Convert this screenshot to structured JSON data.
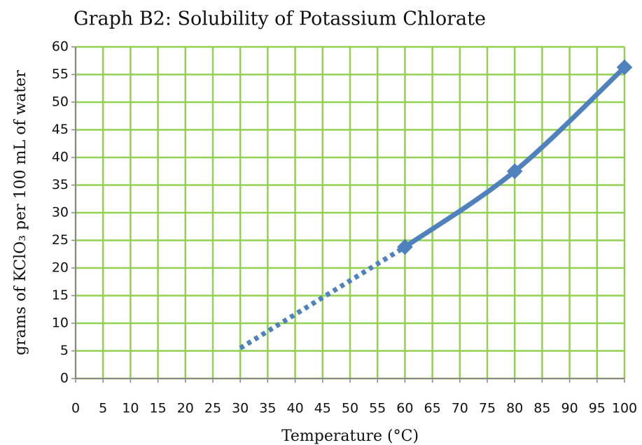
{
  "chart_data": {
    "type": "line",
    "title": "Graph B2: Solubility of Potassium Chlorate",
    "x_label": "Temperature (°C)",
    "y_label": "grams of KClO₃ per 100 mL of water",
    "xlim": [
      0,
      100
    ],
    "xticks": [
      0,
      5,
      10,
      15,
      20,
      25,
      30,
      35,
      40,
      45,
      50,
      55,
      60,
      65,
      70,
      75,
      80,
      85,
      90,
      95,
      100
    ],
    "ylim": [
      0,
      60
    ],
    "yticks": [
      0,
      5,
      10,
      15,
      20,
      25,
      30,
      35,
      40,
      45,
      50,
      55,
      60
    ],
    "grid": true,
    "grid_color": "#92d050",
    "series": [
      {
        "color": "#4f81bd",
        "x": [
          60,
          80,
          100
        ],
        "values": [
          23.8,
          37.5,
          56.3
        ],
        "markers": true,
        "dashed": false
      },
      {
        "color": "#4f81bd",
        "x": [
          30,
          60
        ],
        "values": [
          5.5,
          23.8
        ],
        "markers": false,
        "dashed": true
      }
    ]
  }
}
